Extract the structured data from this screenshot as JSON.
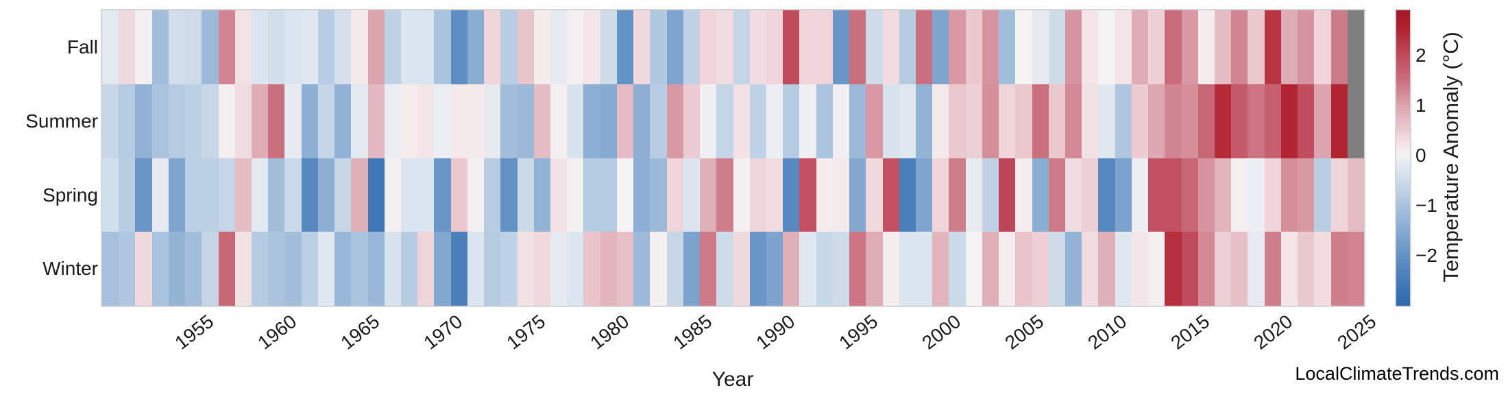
{
  "axes": {
    "x_label": "Year",
    "x_tick_years": [
      1955,
      1960,
      1965,
      1970,
      1975,
      1980,
      1985,
      1990,
      1995,
      2000,
      2005,
      2010,
      2015,
      2020,
      2025
    ],
    "y_categories": [
      "Fall",
      "Summer",
      "Spring",
      "Winter"
    ]
  },
  "colorbar": {
    "label": "Temperature Anomaly (°C)",
    "tick_labels": [
      "2",
      "1",
      "0",
      "−1",
      "−2"
    ],
    "tick_values": [
      2,
      1,
      0,
      -1,
      -2
    ],
    "vmin": -3.0,
    "vmax": 2.9,
    "missing_color": "#7f7f7f",
    "frame_color": "#d6d6d6",
    "stops": [
      [
        -3.0,
        "#2c67ae"
      ],
      [
        -2.5,
        "#457cb9"
      ],
      [
        -2.0,
        "#6391c4"
      ],
      [
        -1.5,
        "#86aad1"
      ],
      [
        -1.0,
        "#aac3de"
      ],
      [
        -0.5,
        "#cedcea"
      ],
      [
        -0.2,
        "#e2e9f1"
      ],
      [
        0.0,
        "#f4f2f2"
      ],
      [
        0.2,
        "#f4e6e8"
      ],
      [
        0.5,
        "#ecccd2"
      ],
      [
        1.0,
        "#dba4ae"
      ],
      [
        1.5,
        "#ca6f7e"
      ],
      [
        2.0,
        "#bf4a5c"
      ],
      [
        2.5,
        "#b12532"
      ],
      [
        2.9,
        "#a41628"
      ]
    ]
  },
  "footer": "LocalClimateTrends.com",
  "chart_data": {
    "type": "heatmap",
    "x": [
      1950,
      1951,
      1952,
      1953,
      1954,
      1955,
      1956,
      1957,
      1958,
      1959,
      1960,
      1961,
      1962,
      1963,
      1964,
      1965,
      1966,
      1967,
      1968,
      1969,
      1970,
      1971,
      1972,
      1973,
      1974,
      1975,
      1976,
      1977,
      1978,
      1979,
      1980,
      1981,
      1982,
      1983,
      1984,
      1985,
      1986,
      1987,
      1988,
      1989,
      1990,
      1991,
      1992,
      1993,
      1994,
      1995,
      1996,
      1997,
      1998,
      1999,
      2000,
      2001,
      2002,
      2003,
      2004,
      2005,
      2006,
      2007,
      2008,
      2009,
      2010,
      2011,
      2012,
      2013,
      2014,
      2015,
      2016,
      2017,
      2018,
      2019,
      2020,
      2021,
      2022,
      2023,
      2024,
      2025
    ],
    "value_units": "°C anomaly",
    "rows": [
      {
        "name": "Fall",
        "values": [
          -0.2,
          0.35,
          0.05,
          -1.1,
          -0.45,
          -0.5,
          -1.2,
          1.3,
          0.25,
          -0.3,
          -0.45,
          -0.3,
          -0.25,
          -0.8,
          -0.4,
          0.15,
          1.0,
          -0.7,
          -0.3,
          -0.3,
          -1.0,
          -2.1,
          -1.45,
          0.4,
          -0.8,
          0.6,
          0.1,
          -0.15,
          0.05,
          0.2,
          -0.5,
          -2.0,
          0.35,
          -0.9,
          -1.6,
          -0.7,
          0.4,
          0.3,
          -0.65,
          0.3,
          0.4,
          2.0,
          0.4,
          0.4,
          -1.9,
          1.5,
          -0.5,
          0.3,
          -0.85,
          1.5,
          -1.6,
          1.1,
          0.55,
          1.15,
          -1.1,
          0.0,
          -0.15,
          -0.5,
          1.15,
          0.2,
          0.0,
          0.2,
          0.9,
          0.45,
          1.55,
          1.1,
          0.1,
          0.7,
          1.3,
          0.55,
          2.3,
          0.9,
          1.15,
          0.4,
          1.4,
          null
        ]
      },
      {
        "name": "Summer",
        "values": [
          -0.6,
          -0.85,
          -1.35,
          -1.0,
          -0.85,
          -0.75,
          -0.6,
          0.05,
          0.3,
          0.9,
          1.5,
          -0.15,
          -1.4,
          -0.65,
          -1.35,
          -0.2,
          0.75,
          -0.1,
          0.1,
          0.2,
          -0.1,
          0.15,
          0.15,
          -0.15,
          -1.1,
          -1.2,
          0.7,
          0.05,
          -0.35,
          -1.4,
          -1.5,
          0.7,
          -1.4,
          -0.8,
          1.1,
          0.5,
          -0.05,
          -0.65,
          0.25,
          -0.7,
          -0.1,
          -0.85,
          -0.05,
          -1.0,
          -0.05,
          -1.2,
          1.1,
          -0.35,
          -0.25,
          -1.3,
          0.15,
          0.55,
          0.45,
          1.2,
          0.4,
          0.55,
          1.5,
          0.55,
          1.25,
          0.25,
          -0.25,
          -0.95,
          0.5,
          0.95,
          1.3,
          1.2,
          1.6,
          2.4,
          1.8,
          1.45,
          1.7,
          2.5,
          1.95,
          1.0,
          2.5,
          null
        ]
      },
      {
        "name": "Spring",
        "values": [
          -0.45,
          -0.8,
          -1.9,
          -0.15,
          -1.6,
          -0.75,
          -0.75,
          -0.65,
          0.7,
          -0.2,
          -1.1,
          -0.55,
          -2.2,
          -1.4,
          -0.6,
          0.85,
          -2.6,
          0.05,
          -0.3,
          -0.3,
          -1.9,
          0.55,
          0.05,
          -0.8,
          -2.0,
          -0.55,
          -1.3,
          0.25,
          0.05,
          -0.85,
          -0.85,
          0.0,
          -1.4,
          -1.2,
          0.4,
          -0.3,
          0.85,
          1.35,
          0.05,
          0.4,
          0.3,
          -2.2,
          1.9,
          0.1,
          0.15,
          -1.55,
          0.35,
          1.9,
          -2.4,
          -1.6,
          0.4,
          1.35,
          -0.15,
          -0.7,
          2.05,
          0.1,
          -1.45,
          1.4,
          0.3,
          0.45,
          -2.2,
          -1.65,
          -0.1,
          1.9,
          1.9,
          1.6,
          1.15,
          0.8,
          0.05,
          -0.1,
          0.4,
          1.2,
          1.1,
          -0.8,
          0.4,
          0.7
        ]
      },
      {
        "name": "Winter",
        "values": [
          -1.05,
          -0.95,
          0.35,
          -1.0,
          -1.3,
          -1.1,
          -0.65,
          1.6,
          0.25,
          -0.85,
          -1.0,
          -1.1,
          -0.75,
          -0.25,
          -1.25,
          -1.0,
          -1.25,
          -0.35,
          -0.85,
          0.4,
          -1.55,
          -2.4,
          -0.3,
          -0.85,
          -0.7,
          0.25,
          0.35,
          -0.15,
          -0.3,
          0.6,
          0.8,
          0.65,
          -1.2,
          0.05,
          -0.6,
          -1.65,
          1.4,
          -0.5,
          0.35,
          -1.9,
          -1.65,
          0.85,
          -0.25,
          -0.6,
          -0.5,
          1.45,
          0.9,
          0.1,
          -0.3,
          -0.3,
          0.8,
          -0.55,
          0.0,
          0.85,
          0.1,
          0.6,
          0.45,
          -0.5,
          -1.3,
          0.3,
          0.85,
          -0.25,
          0.2,
          0.05,
          2.35,
          2.0,
          1.25,
          0.45,
          0.65,
          -0.15,
          1.35,
          0.2,
          0.55,
          0.3,
          1.35,
          1.3
        ]
      }
    ]
  }
}
